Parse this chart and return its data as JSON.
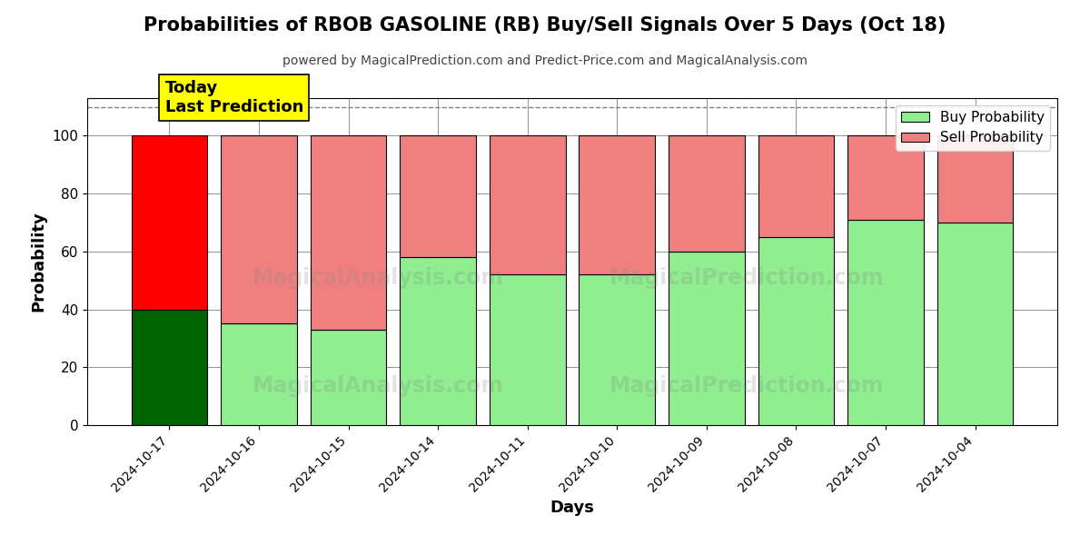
{
  "title": "Probabilities of RBOB GASOLINE (RB) Buy/Sell Signals Over 5 Days (Oct 18)",
  "subtitle": "powered by MagicalPrediction.com and Predict-Price.com and MagicalAnalysis.com",
  "xlabel": "Days",
  "ylabel": "Probability",
  "dates": [
    "2024-10-17",
    "2024-10-16",
    "2024-10-15",
    "2024-10-14",
    "2024-10-11",
    "2024-10-10",
    "2024-10-09",
    "2024-10-08",
    "2024-10-07",
    "2024-10-04"
  ],
  "buy_values": [
    40,
    35,
    33,
    58,
    52,
    52,
    60,
    65,
    71,
    70
  ],
  "sell_values": [
    60,
    65,
    67,
    42,
    48,
    48,
    40,
    35,
    29,
    30
  ],
  "today_buy_color": "#006400",
  "today_sell_color": "#FF0000",
  "other_buy_color": "#90EE90",
  "other_sell_color": "#F08080",
  "bar_edge_color": "#000000",
  "ylim": [
    0,
    113
  ],
  "yticks": [
    0,
    20,
    40,
    60,
    80,
    100
  ],
  "dashed_line_y": 110,
  "annotation_text": "Today\nLast Prediction",
  "annotation_bg": "#FFFF00",
  "legend_buy_label": "Buy Probability",
  "legend_sell_label": "Sell Probability",
  "figsize": [
    12,
    6
  ],
  "dpi": 100,
  "bar_width": 0.85
}
